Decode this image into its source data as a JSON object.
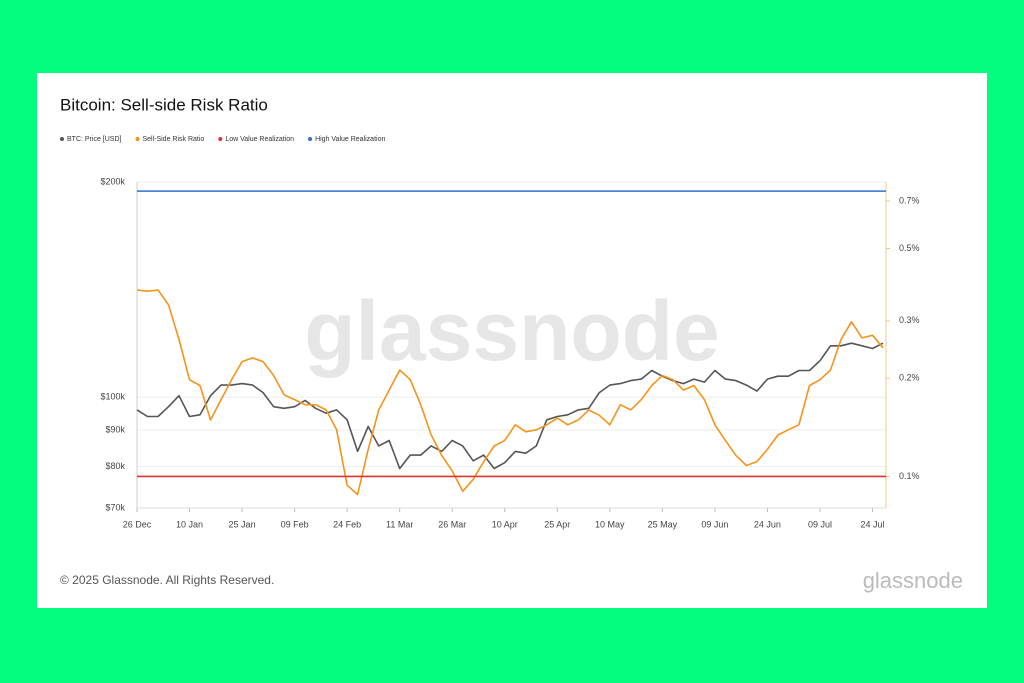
{
  "chart_data": {
    "type": "line",
    "title": "Bitcoin: Sell-side Risk Ratio",
    "watermark": "glassnode",
    "footer": "© 2025 Glassnode. All Rights Reserved.",
    "logo": "glassnode",
    "yscale": "log",
    "y2scale": "log",
    "x": [
      0,
      3,
      6,
      9,
      12,
      15,
      18,
      21,
      24,
      27,
      30,
      33,
      36,
      39,
      42,
      45,
      48,
      51,
      54,
      57,
      60,
      63,
      66,
      69,
      72,
      75,
      78,
      81,
      84,
      87,
      90,
      93,
      96,
      99,
      102,
      105,
      108,
      111,
      114,
      117,
      120,
      123,
      126,
      129,
      132,
      135,
      138,
      141,
      144,
      147,
      150,
      153,
      156,
      159,
      162,
      165,
      168,
      171,
      174,
      177,
      180,
      183,
      186,
      189,
      192,
      195,
      198,
      201,
      204,
      207,
      210,
      213
    ],
    "xlim": [
      0,
      213
    ],
    "xticks": [
      {
        "value": 0,
        "label": "26 Dec"
      },
      {
        "value": 15,
        "label": "10 Jan"
      },
      {
        "value": 30,
        "label": "25 Jan"
      },
      {
        "value": 45,
        "label": "09 Feb"
      },
      {
        "value": 60,
        "label": "24 Feb"
      },
      {
        "value": 75,
        "label": "11 Mar"
      },
      {
        "value": 90,
        "label": "26 Mar"
      },
      {
        "value": 105,
        "label": "10 Apr"
      },
      {
        "value": 120,
        "label": "25 Apr"
      },
      {
        "value": 135,
        "label": "10 May"
      },
      {
        "value": 150,
        "label": "25 May"
      },
      {
        "value": 165,
        "label": "09 Jun"
      },
      {
        "value": 180,
        "label": "24 Jun"
      },
      {
        "value": 195,
        "label": "09 Jul"
      },
      {
        "value": 210,
        "label": "24 Jul"
      }
    ],
    "ylim": [
      70000,
      200000
    ],
    "yticks": [
      {
        "value": 70000,
        "label": "$70k"
      },
      {
        "value": 80000,
        "label": "$80k"
      },
      {
        "value": 90000,
        "label": "$90k"
      },
      {
        "value": 100000,
        "label": "$100k"
      },
      {
        "value": 200000,
        "label": "$200k"
      }
    ],
    "y2lim": [
      0.08,
      0.8
    ],
    "y2ticks": [
      {
        "value": 0.1,
        "label": "0.1%"
      },
      {
        "value": 0.2,
        "label": "0.2%"
      },
      {
        "value": 0.3,
        "label": "0.3%"
      },
      {
        "value": 0.5,
        "label": "0.5%"
      },
      {
        "value": 0.7,
        "label": "0.7%"
      }
    ],
    "grid": true,
    "series": [
      {
        "name": "BTC: Price [USD]",
        "color": "#555555",
        "values": [
          96000,
          94000,
          94000,
          97000,
          100500,
          94000,
          94500,
          100500,
          104000,
          104000,
          104500,
          104000,
          101500,
          97000,
          96500,
          97000,
          99000,
          96500,
          95000,
          96000,
          93000,
          84000,
          91000,
          85500,
          87000,
          79500,
          83000,
          83000,
          85500,
          84000,
          87000,
          85500,
          81500,
          83000,
          79500,
          81000,
          84000,
          83500,
          85500,
          93000,
          94000,
          94500,
          96000,
          96500,
          101500,
          104000,
          104500,
          105500,
          106000,
          109000,
          107000,
          105500,
          104500,
          106000,
          105000,
          109000,
          106000,
          105500,
          104000,
          102000,
          106000,
          107000,
          107000,
          109000,
          109000,
          112500,
          118000,
          118000,
          119000,
          118000,
          117000,
          119000
        ]
      },
      {
        "name": "Sell-Side Risk Ratio",
        "color": "#f7931a",
        "axis": "y2",
        "values": [
          0.373,
          0.37,
          0.373,
          0.336,
          0.263,
          0.198,
          0.19,
          0.149,
          0.172,
          0.198,
          0.225,
          0.231,
          0.225,
          0.204,
          0.178,
          0.172,
          0.166,
          0.166,
          0.16,
          0.139,
          0.094,
          0.088,
          0.121,
          0.16,
          0.184,
          0.212,
          0.198,
          0.166,
          0.134,
          0.116,
          0.104,
          0.09,
          0.098,
          0.111,
          0.124,
          0.129,
          0.144,
          0.137,
          0.139,
          0.144,
          0.151,
          0.144,
          0.149,
          0.16,
          0.154,
          0.144,
          0.166,
          0.16,
          0.172,
          0.19,
          0.204,
          0.198,
          0.184,
          0.19,
          0.172,
          0.144,
          0.129,
          0.116,
          0.108,
          0.111,
          0.121,
          0.134,
          0.139,
          0.144,
          0.19,
          0.198,
          0.212,
          0.263,
          0.298,
          0.266,
          0.271,
          0.248
        ]
      },
      {
        "name": "Low Value Realization",
        "color": "#e0302f",
        "axis": "y2",
        "value": 0.1
      },
      {
        "name": "High Value Realization",
        "color": "#2e6fd9",
        "axis": "y2",
        "value": 0.75
      }
    ]
  }
}
